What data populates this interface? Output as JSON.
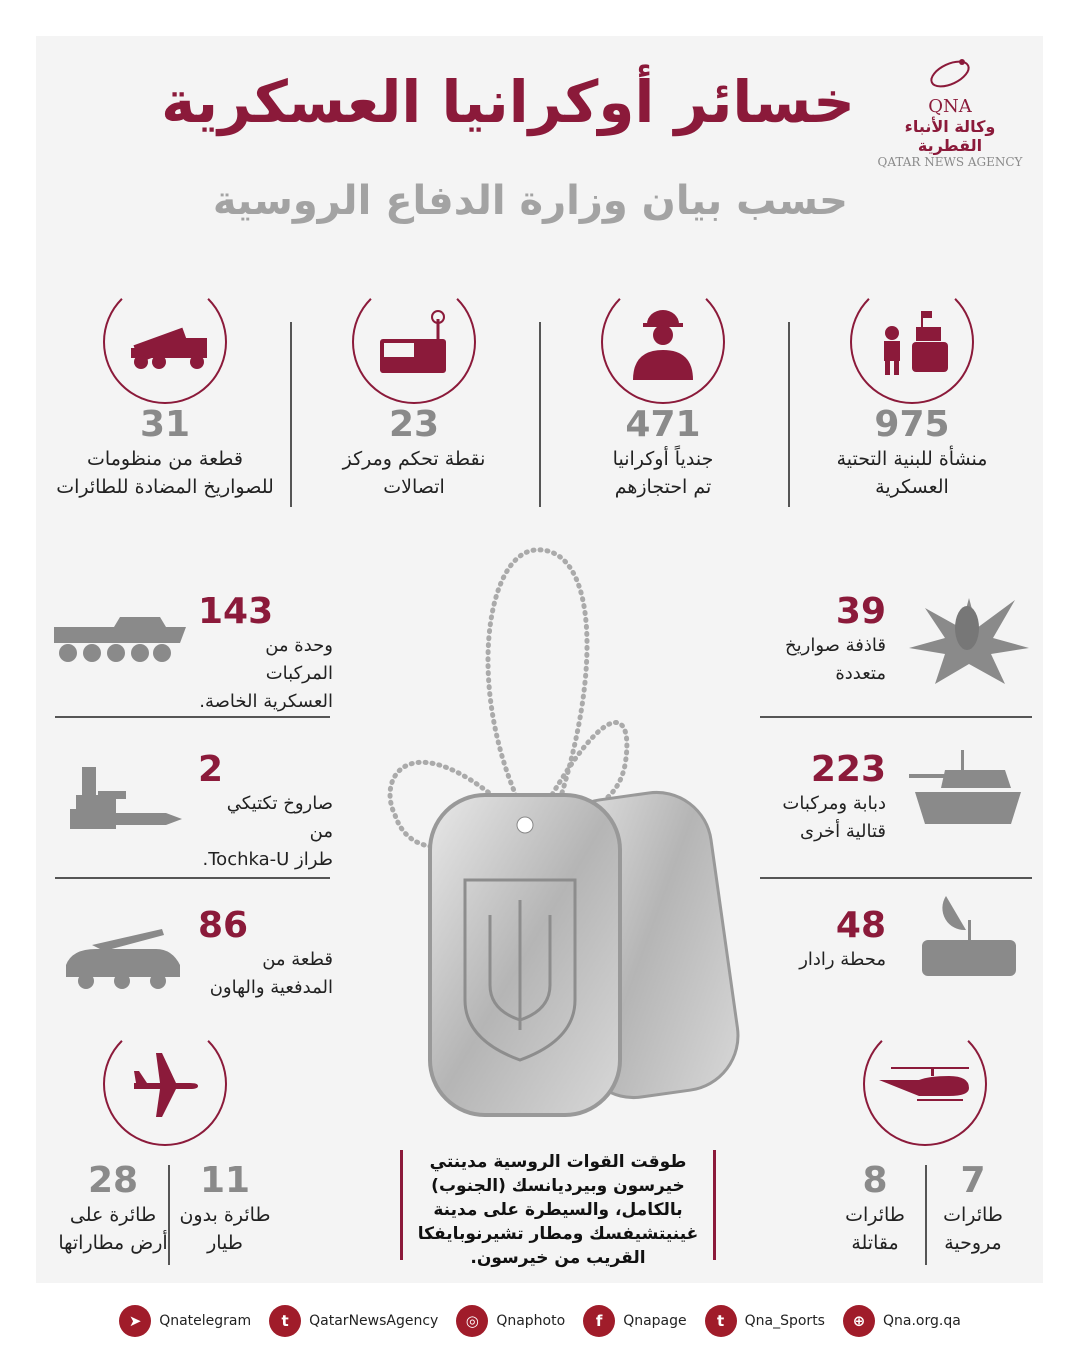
{
  "header": {
    "title": "خسائر أوكرانيا العسكرية",
    "subtitle": "حسب بيان وزارة الدفاع الروسية"
  },
  "logo": {
    "short": "QNA",
    "arabic": "وكالة الأنباء القطرية",
    "english": "QATAR NEWS AGENCY"
  },
  "top_stats": [
    {
      "value": "975",
      "line1": "منشأة للبنية التحتية",
      "line2": "العسكرية",
      "icon": "infrastructure-icon"
    },
    {
      "value": "471",
      "line1": "جندياً أوكرانيا",
      "line2": "تم احتجازهم",
      "icon": "soldier-icon"
    },
    {
      "value": "23",
      "line1": "نقطة تحكم ومركز",
      "line2": "اتصالات",
      "icon": "communications-icon"
    },
    {
      "value": "31",
      "line1": "قطعة من منظومات",
      "line2": "للصواريخ المضادة للطائرات",
      "icon": "missile-launcher-icon"
    }
  ],
  "left_stats": [
    {
      "value": "143",
      "line1": "وحدة من المركبات",
      "line2": "العسكرية الخاصة.",
      "icon": "armored-vehicle-icon"
    },
    {
      "value": "2",
      "line1": "صاروخ تكتيكي من",
      "line2": "طراز Tochka-U.",
      "icon": "tactical-missile-icon"
    },
    {
      "value": "86",
      "line1": "قطعة من",
      "line2": "المدفعية والهاون",
      "icon": "artillery-icon"
    }
  ],
  "right_stats": [
    {
      "value": "39",
      "line1": "قاذفة صواريخ",
      "line2": "متعددة",
      "icon": "rocket-explosion-icon"
    },
    {
      "value": "223",
      "line1": "دبابة ومركبات",
      "line2": "قتالية أخرى",
      "icon": "tank-icon"
    },
    {
      "value": "48",
      "line1": "محطة رادار",
      "line2": "",
      "icon": "radar-icon"
    }
  ],
  "bottom_left": {
    "icon": "airplane-icon",
    "items": [
      {
        "value": "28",
        "line1": "طائرة على",
        "line2": "أرض مطاراتها"
      },
      {
        "value": "11",
        "line1": "طائرة بدون",
        "line2": "طيار"
      }
    ]
  },
  "bottom_right": {
    "icon": "helicopter-icon",
    "items": [
      {
        "value": "8",
        "line1": "طائرات",
        "line2": "مقاتلة"
      },
      {
        "value": "7",
        "line1": "طائرات",
        "line2": "مروحية"
      }
    ]
  },
  "center_text": "طوقت القوات الروسية مدينتي خيرسون وبيرديانسك (الجنوب) بالكامل، والسيطرة على مدينة غينيتشيفسك ومطار تشيرنوبايفكا القريب من خيرسون.",
  "footer": [
    {
      "icon": "telegram-icon",
      "label": "Qnatelegram"
    },
    {
      "icon": "twitter-icon",
      "label": "QatarNewsAgency"
    },
    {
      "icon": "instagram-icon",
      "label": "Qnaphoto"
    },
    {
      "icon": "facebook-icon",
      "label": "Qnapage"
    },
    {
      "icon": "twitter-icon",
      "label": "Qna_Sports"
    },
    {
      "icon": "globe-icon",
      "label": "Qna.org.qa"
    }
  ],
  "colors": {
    "accent": "#8b1a3a",
    "gray": "#8a8a8a",
    "background": "#f4f4f4"
  }
}
